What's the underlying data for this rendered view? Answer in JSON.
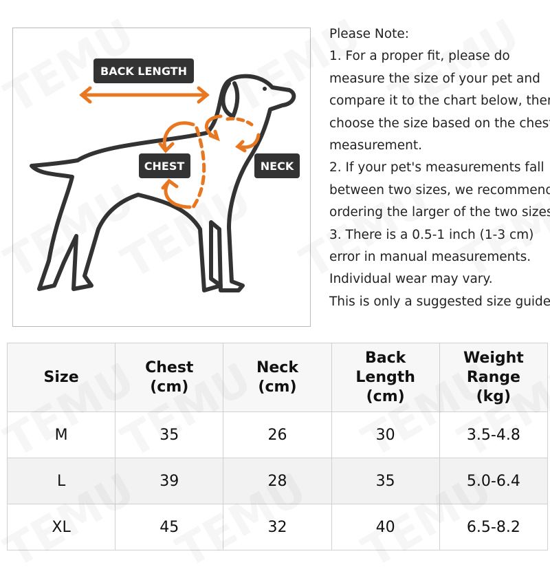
{
  "watermark": "TEMU",
  "diagram": {
    "back_length": "BACK LENGTH",
    "chest": "CHEST",
    "neck": "NECK"
  },
  "notes": [
    "Please Note:",
    "1. For a proper fit, please do",
    "measure the size of your pet and",
    "compare it to the chart below, then",
    "choose the size based on the chest",
    "measurement.",
    "2. If your pet's measurements fall",
    "between two sizes, we recommend",
    "ordering the larger of the two sizes.",
    "3. There is a 0.5-1 inch (1-3 cm)",
    "error in manual measurements.",
    "Individual wear may vary.",
    "This is only a suggested size guide."
  ],
  "table": {
    "headers": [
      [
        "Size"
      ],
      [
        "Chest",
        "(cm)"
      ],
      [
        "Neck",
        "(cm)"
      ],
      [
        "Back",
        "Length",
        "(cm)"
      ],
      [
        "Weight",
        "Range",
        "(kg)"
      ]
    ],
    "rows": [
      [
        "M",
        "35",
        "26",
        "30",
        "3.5-4.8"
      ],
      [
        "L",
        "39",
        "28",
        "35",
        "5.0-6.4"
      ],
      [
        "XL",
        "45",
        "32",
        "40",
        "6.5-8.2"
      ]
    ]
  }
}
